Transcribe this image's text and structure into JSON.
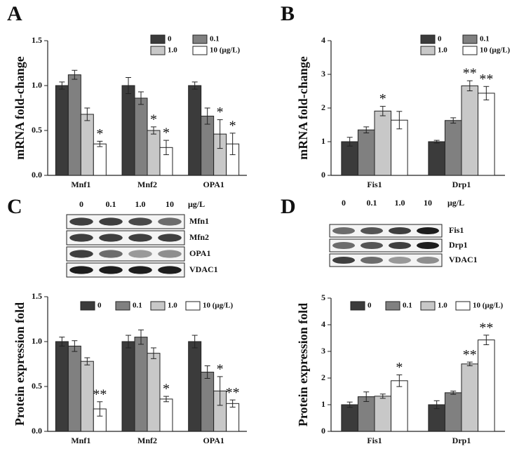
{
  "chart_data": [
    {
      "type": "bar",
      "panel_label": "A",
      "y_label": "mRNA fold-change",
      "categories": [
        "Mnf1",
        "Mnf2",
        "OPA1"
      ],
      "ylim": [
        0,
        1.5
      ],
      "yticks": [
        {
          "value": 0,
          "label": "0.0"
        },
        0.5,
        {
          "value": 1,
          "label": "1.0"
        },
        1.5
      ],
      "legend_layout": "grid",
      "series": [
        {
          "name": "0",
          "color": "#3b3b3b",
          "values": [
            1.0,
            1.0,
            1.0
          ],
          "errors": [
            0.04,
            0.09,
            0.04
          ],
          "stars": [
            null,
            null,
            null
          ]
        },
        {
          "name": "0.1",
          "color": "#808080",
          "values": [
            1.12,
            0.86,
            0.66
          ],
          "errors": [
            0.05,
            0.07,
            0.09
          ],
          "stars": [
            null,
            null,
            null
          ]
        },
        {
          "name": "1.0",
          "color": "#c8c8c8",
          "values": [
            0.68,
            0.5,
            0.46
          ],
          "errors": [
            0.07,
            0.04,
            0.16
          ],
          "stars": [
            null,
            "*",
            "*"
          ]
        },
        {
          "name": "10 (μg/L)",
          "color": "#ffffff",
          "values": [
            0.35,
            0.31,
            0.35
          ],
          "errors": [
            0.03,
            0.08,
            0.12
          ],
          "stars": [
            "*",
            "*",
            "*"
          ]
        }
      ]
    },
    {
      "type": "bar",
      "panel_label": "B",
      "y_label": "mRNA fold-change",
      "categories": [
        "Fis1",
        "Drp1"
      ],
      "ylim": [
        0,
        4
      ],
      "yticks": [
        0,
        1,
        2,
        3,
        4
      ],
      "legend_layout": "grid",
      "series": [
        {
          "name": "0",
          "color": "#3b3b3b",
          "values": [
            1.0,
            1.0
          ],
          "errors": [
            0.13,
            0.04
          ],
          "stars": [
            null,
            null
          ]
        },
        {
          "name": "0.1",
          "color": "#808080",
          "values": [
            1.35,
            1.63
          ],
          "errors": [
            0.09,
            0.08
          ],
          "stars": [
            null,
            null
          ]
        },
        {
          "name": "1.0",
          "color": "#c8c8c8",
          "values": [
            1.91,
            2.66
          ],
          "errors": [
            0.14,
            0.15
          ],
          "stars": [
            "*",
            "**"
          ]
        },
        {
          "name": "10 (μg/L)",
          "color": "#ffffff",
          "values": [
            1.64,
            2.44
          ],
          "errors": [
            0.26,
            0.2
          ],
          "stars": [
            null,
            "**"
          ]
        }
      ]
    },
    {
      "type": "bar",
      "panel_label": "C",
      "y_label": "Protein expression fold",
      "categories": [
        "Mnf1",
        "Mnf2",
        "OPA1"
      ],
      "ylim": [
        0,
        1.5
      ],
      "yticks": [
        {
          "value": 0,
          "label": "0.0"
        },
        0.5,
        {
          "value": 1,
          "label": "1.0"
        },
        1.5
      ],
      "legend_layout": "row",
      "series": [
        {
          "name": "0",
          "color": "#3b3b3b",
          "values": [
            1.0,
            1.0,
            1.0
          ],
          "errors": [
            0.05,
            0.07,
            0.07
          ],
          "stars": [
            null,
            null,
            null
          ]
        },
        {
          "name": "0.1",
          "color": "#808080",
          "values": [
            0.95,
            1.05,
            0.66
          ],
          "errors": [
            0.06,
            0.08,
            0.07
          ],
          "stars": [
            null,
            null,
            null
          ]
        },
        {
          "name": "1.0",
          "color": "#c8c8c8",
          "values": [
            0.78,
            0.87,
            0.45
          ],
          "errors": [
            0.04,
            0.06,
            0.16
          ],
          "stars": [
            null,
            null,
            "*"
          ]
        },
        {
          "name": "10 (μg/L)",
          "color": "#ffffff",
          "values": [
            0.25,
            0.36,
            0.31
          ],
          "errors": [
            0.08,
            0.03,
            0.04
          ],
          "stars": [
            "**",
            "*",
            "**"
          ]
        }
      ]
    },
    {
      "type": "bar",
      "panel_label": "D",
      "y_label": "Protein expression fold",
      "categories": [
        "Fis1",
        "Drp1"
      ],
      "ylim": [
        0,
        5
      ],
      "yticks": [
        0,
        1,
        2,
        3,
        4,
        5
      ],
      "legend_layout": "row",
      "series": [
        {
          "name": "0",
          "color": "#3b3b3b",
          "values": [
            1.0,
            1.0
          ],
          "errors": [
            0.1,
            0.15
          ],
          "stars": [
            null,
            null
          ]
        },
        {
          "name": "0.1",
          "color": "#808080",
          "values": [
            1.3,
            1.45
          ],
          "errors": [
            0.18,
            0.06
          ],
          "stars": [
            null,
            null
          ]
        },
        {
          "name": "1.0",
          "color": "#c8c8c8",
          "values": [
            1.32,
            2.53
          ],
          "errors": [
            0.08,
            0.07
          ],
          "stars": [
            null,
            "**"
          ]
        },
        {
          "name": "10 (μg/L)",
          "color": "#ffffff",
          "values": [
            1.9,
            3.43
          ],
          "errors": [
            0.22,
            0.18
          ],
          "stars": [
            "*",
            "**"
          ]
        }
      ]
    }
  ],
  "blots": [
    {
      "lanes": [
        "0",
        "0.1",
        "1.0",
        "10"
      ],
      "unit": "μg/L",
      "rows": [
        "Mfn1",
        "Mfn2",
        "OPA1",
        "VDAC1"
      ]
    },
    {
      "lanes": [
        "0",
        "0.1",
        "1.0",
        "10"
      ],
      "unit": "μg/L",
      "rows": [
        "Fis1",
        "Drp1",
        "VDAC1"
      ]
    }
  ]
}
